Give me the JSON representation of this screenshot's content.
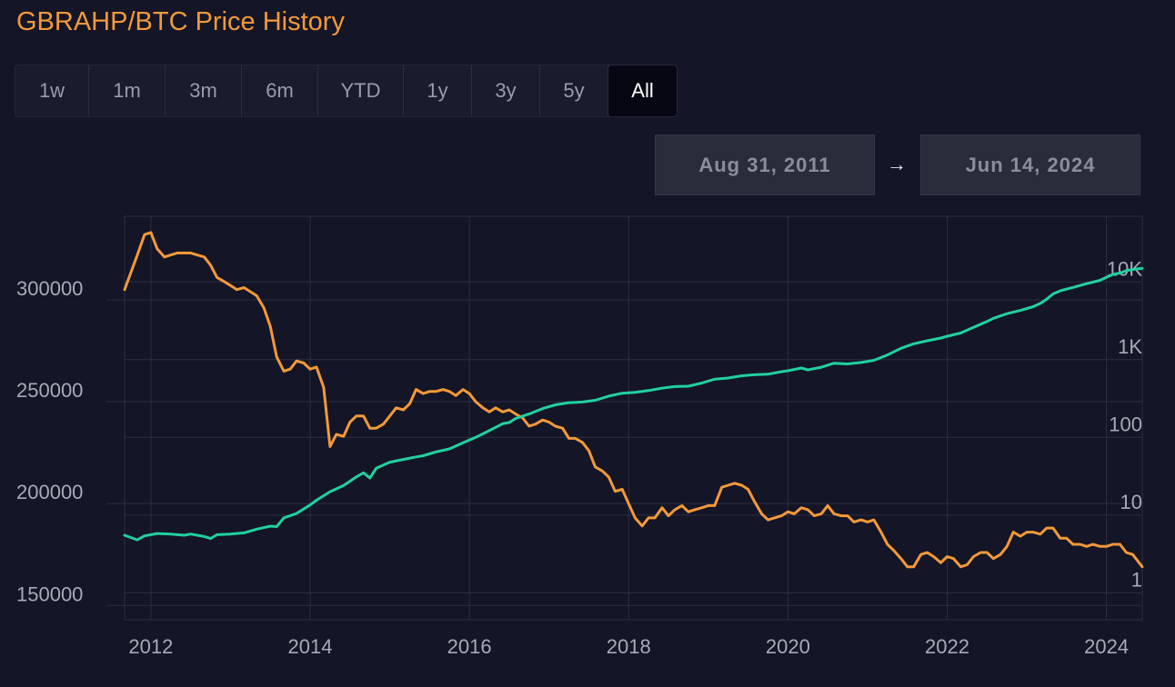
{
  "title": "GBRAHP/BTC Price History",
  "range_tabs": [
    {
      "label": "1w",
      "active": false
    },
    {
      "label": "1m",
      "active": false
    },
    {
      "label": "3m",
      "active": false
    },
    {
      "label": "6m",
      "active": false
    },
    {
      "label": "YTD",
      "active": false
    },
    {
      "label": "1y",
      "active": false
    },
    {
      "label": "3y",
      "active": false
    },
    {
      "label": "5y",
      "active": false
    },
    {
      "label": "All",
      "active": true
    }
  ],
  "date_range": {
    "start": "Aug 31, 2011",
    "arrow": "→",
    "end": "Jun 14, 2024"
  },
  "colors": {
    "background": "#141526",
    "grid": "#2c2e42",
    "gbrahp": "#f2993a",
    "btc": "#21d19f",
    "text": "#a8aab6"
  },
  "chart_data": {
    "type": "line",
    "x_range": [
      2011.67,
      2024.45
    ],
    "x_ticks": [
      {
        "value": 2012,
        "label": "2012"
      },
      {
        "value": 2014,
        "label": "2014"
      },
      {
        "value": 2016,
        "label": "2016"
      },
      {
        "value": 2018,
        "label": "2018"
      },
      {
        "value": 2020,
        "label": "2020"
      },
      {
        "value": 2022,
        "label": "2022"
      },
      {
        "value": 2024,
        "label": "2024"
      }
    ],
    "y_left": {
      "scale": "linear",
      "ylim": [
        143000,
        341000
      ],
      "ticks": [
        {
          "value": 150000,
          "label": "150000"
        },
        {
          "value": 200000,
          "label": "200000"
        },
        {
          "value": 250000,
          "label": "250000"
        },
        {
          "value": 300000,
          "label": "300000"
        }
      ]
    },
    "y_right": {
      "scale": "log",
      "ylim": [
        0.45,
        70000
      ],
      "ticks": [
        {
          "value": 1,
          "label": "1"
        },
        {
          "value": 10,
          "label": "10"
        },
        {
          "value": 100,
          "label": "100"
        },
        {
          "value": 1000,
          "label": "1K"
        },
        {
          "value": 10000,
          "label": "10K"
        }
      ]
    },
    "grid": true,
    "series": [
      {
        "axis": "left",
        "color": "#f2993a",
        "points": [
          [
            2011.67,
            305000
          ],
          [
            2011.83,
            322000
          ],
          [
            2011.92,
            332000
          ],
          [
            2012.0,
            333000
          ],
          [
            2012.08,
            325000
          ],
          [
            2012.17,
            321000
          ],
          [
            2012.25,
            322000
          ],
          [
            2012.33,
            323000
          ],
          [
            2012.5,
            323000
          ],
          [
            2012.67,
            321000
          ],
          [
            2012.75,
            317000
          ],
          [
            2012.83,
            311000
          ],
          [
            2012.92,
            309000
          ],
          [
            2013.0,
            307000
          ],
          [
            2013.08,
            305000
          ],
          [
            2013.17,
            306000
          ],
          [
            2013.25,
            304000
          ],
          [
            2013.33,
            302000
          ],
          [
            2013.42,
            296000
          ],
          [
            2013.5,
            287000
          ],
          [
            2013.58,
            272000
          ],
          [
            2013.67,
            265000
          ],
          [
            2013.75,
            266000
          ],
          [
            2013.83,
            270000
          ],
          [
            2013.92,
            269000
          ],
          [
            2014.0,
            266000
          ],
          [
            2014.08,
            267000
          ],
          [
            2014.17,
            257000
          ],
          [
            2014.25,
            228000
          ],
          [
            2014.33,
            234000
          ],
          [
            2014.42,
            233000
          ],
          [
            2014.5,
            240000
          ],
          [
            2014.58,
            243000
          ],
          [
            2014.67,
            243000
          ],
          [
            2014.75,
            237000
          ],
          [
            2014.83,
            237000
          ],
          [
            2014.92,
            239000
          ],
          [
            2015.0,
            243000
          ],
          [
            2015.08,
            247000
          ],
          [
            2015.17,
            246000
          ],
          [
            2015.25,
            249000
          ],
          [
            2015.33,
            256000
          ],
          [
            2015.42,
            254000
          ],
          [
            2015.5,
            255000
          ],
          [
            2015.58,
            255000
          ],
          [
            2015.67,
            256000
          ],
          [
            2015.75,
            255000
          ],
          [
            2015.83,
            253000
          ],
          [
            2015.92,
            256000
          ],
          [
            2016.0,
            254000
          ],
          [
            2016.08,
            250000
          ],
          [
            2016.17,
            247000
          ],
          [
            2016.25,
            245000
          ],
          [
            2016.33,
            247000
          ],
          [
            2016.42,
            245000
          ],
          [
            2016.5,
            246000
          ],
          [
            2016.58,
            244000
          ],
          [
            2016.67,
            242000
          ],
          [
            2016.75,
            238000
          ],
          [
            2016.83,
            239000
          ],
          [
            2016.92,
            241000
          ],
          [
            2017.0,
            240000
          ],
          [
            2017.08,
            238000
          ],
          [
            2017.17,
            237000
          ],
          [
            2017.25,
            232000
          ],
          [
            2017.33,
            232000
          ],
          [
            2017.42,
            230000
          ],
          [
            2017.5,
            226000
          ],
          [
            2017.58,
            218000
          ],
          [
            2017.67,
            216000
          ],
          [
            2017.75,
            213000
          ],
          [
            2017.83,
            206000
          ],
          [
            2017.92,
            207000
          ],
          [
            2018.0,
            200000
          ],
          [
            2018.08,
            193000
          ],
          [
            2018.17,
            189000
          ],
          [
            2018.25,
            193000
          ],
          [
            2018.33,
            193000
          ],
          [
            2018.42,
            198000
          ],
          [
            2018.5,
            194000
          ],
          [
            2018.58,
            197000
          ],
          [
            2018.67,
            199000
          ],
          [
            2018.75,
            196000
          ],
          [
            2018.83,
            197000
          ],
          [
            2018.92,
            198000
          ],
          [
            2019.0,
            199000
          ],
          [
            2019.08,
            199000
          ],
          [
            2019.17,
            208000
          ],
          [
            2019.25,
            209000
          ],
          [
            2019.33,
            210000
          ],
          [
            2019.42,
            209000
          ],
          [
            2019.5,
            207000
          ],
          [
            2019.58,
            201000
          ],
          [
            2019.67,
            195000
          ],
          [
            2019.75,
            192000
          ],
          [
            2019.83,
            193000
          ],
          [
            2019.92,
            194000
          ],
          [
            2020.0,
            196000
          ],
          [
            2020.08,
            195000
          ],
          [
            2020.17,
            198000
          ],
          [
            2020.25,
            197000
          ],
          [
            2020.33,
            194000
          ],
          [
            2020.42,
            195000
          ],
          [
            2020.5,
            199000
          ],
          [
            2020.58,
            195000
          ],
          [
            2020.67,
            194000
          ],
          [
            2020.75,
            194000
          ],
          [
            2020.83,
            191000
          ],
          [
            2020.92,
            192000
          ],
          [
            2021.0,
            191000
          ],
          [
            2021.08,
            192000
          ],
          [
            2021.17,
            186000
          ],
          [
            2021.25,
            180000
          ],
          [
            2021.33,
            177000
          ],
          [
            2021.42,
            173000
          ],
          [
            2021.5,
            169000
          ],
          [
            2021.58,
            169000
          ],
          [
            2021.67,
            175000
          ],
          [
            2021.75,
            176000
          ],
          [
            2021.83,
            174000
          ],
          [
            2021.92,
            171000
          ],
          [
            2022.0,
            174000
          ],
          [
            2022.08,
            173000
          ],
          [
            2022.17,
            169000
          ],
          [
            2022.25,
            170000
          ],
          [
            2022.33,
            174000
          ],
          [
            2022.42,
            176000
          ],
          [
            2022.5,
            176000
          ],
          [
            2022.58,
            173000
          ],
          [
            2022.67,
            175000
          ],
          [
            2022.75,
            179000
          ],
          [
            2022.83,
            186000
          ],
          [
            2022.92,
            184000
          ],
          [
            2023.0,
            186000
          ],
          [
            2023.08,
            186000
          ],
          [
            2023.17,
            185000
          ],
          [
            2023.25,
            188000
          ],
          [
            2023.33,
            188000
          ],
          [
            2023.42,
            183000
          ],
          [
            2023.5,
            183000
          ],
          [
            2023.58,
            180000
          ],
          [
            2023.67,
            180000
          ],
          [
            2023.75,
            179000
          ],
          [
            2023.83,
            180000
          ],
          [
            2023.92,
            179000
          ],
          [
            2024.0,
            179000
          ],
          [
            2024.08,
            180000
          ],
          [
            2024.17,
            180000
          ],
          [
            2024.25,
            176000
          ],
          [
            2024.33,
            175000
          ],
          [
            2024.45,
            169000
          ]
        ]
      },
      {
        "axis": "right",
        "color": "#21d19f",
        "points": [
          [
            2011.67,
            5.5
          ],
          [
            2011.83,
            4.8
          ],
          [
            2011.92,
            5.4
          ],
          [
            2012.08,
            5.8
          ],
          [
            2012.25,
            5.7
          ],
          [
            2012.42,
            5.5
          ],
          [
            2012.5,
            5.7
          ],
          [
            2012.67,
            5.3
          ],
          [
            2012.75,
            5.0
          ],
          [
            2012.83,
            5.6
          ],
          [
            2013.0,
            5.7
          ],
          [
            2013.17,
            5.9
          ],
          [
            2013.33,
            6.6
          ],
          [
            2013.5,
            7.2
          ],
          [
            2013.58,
            7.1
          ],
          [
            2013.67,
            9.2
          ],
          [
            2013.83,
            10.5
          ],
          [
            2014.0,
            13.5
          ],
          [
            2014.08,
            15.5
          ],
          [
            2014.25,
            20
          ],
          [
            2014.42,
            24
          ],
          [
            2014.58,
            31
          ],
          [
            2014.67,
            35
          ],
          [
            2014.75,
            30
          ],
          [
            2014.83,
            40
          ],
          [
            2015.0,
            48
          ],
          [
            2015.17,
            52
          ],
          [
            2015.33,
            56
          ],
          [
            2015.42,
            58
          ],
          [
            2015.58,
            65
          ],
          [
            2015.75,
            71
          ],
          [
            2015.92,
            85
          ],
          [
            2016.08,
            100
          ],
          [
            2016.25,
            122
          ],
          [
            2016.42,
            150
          ],
          [
            2016.5,
            155
          ],
          [
            2016.58,
            175
          ],
          [
            2016.75,
            200
          ],
          [
            2016.92,
            235
          ],
          [
            2017.08,
            262
          ],
          [
            2017.25,
            280
          ],
          [
            2017.42,
            285
          ],
          [
            2017.58,
            300
          ],
          [
            2017.75,
            340
          ],
          [
            2017.92,
            370
          ],
          [
            2018.08,
            380
          ],
          [
            2018.25,
            400
          ],
          [
            2018.42,
            430
          ],
          [
            2018.58,
            450
          ],
          [
            2018.75,
            455
          ],
          [
            2018.92,
            500
          ],
          [
            2019.08,
            560
          ],
          [
            2019.25,
            580
          ],
          [
            2019.42,
            620
          ],
          [
            2019.58,
            640
          ],
          [
            2019.75,
            650
          ],
          [
            2019.92,
            700
          ],
          [
            2020.0,
            720
          ],
          [
            2020.17,
            780
          ],
          [
            2020.25,
            740
          ],
          [
            2020.42,
            800
          ],
          [
            2020.58,
            900
          ],
          [
            2020.75,
            880
          ],
          [
            2020.92,
            920
          ],
          [
            2021.08,
            980
          ],
          [
            2021.25,
            1150
          ],
          [
            2021.42,
            1400
          ],
          [
            2021.58,
            1600
          ],
          [
            2021.75,
            1750
          ],
          [
            2021.92,
            1900
          ],
          [
            2022.0,
            2000
          ],
          [
            2022.17,
            2200
          ],
          [
            2022.33,
            2600
          ],
          [
            2022.5,
            3100
          ],
          [
            2022.58,
            3400
          ],
          [
            2022.75,
            3900
          ],
          [
            2022.92,
            4300
          ],
          [
            2023.08,
            4800
          ],
          [
            2023.17,
            5300
          ],
          [
            2023.25,
            6000
          ],
          [
            2023.33,
            7000
          ],
          [
            2023.42,
            7700
          ],
          [
            2023.58,
            8500
          ],
          [
            2023.75,
            9500
          ],
          [
            2023.92,
            10500
          ],
          [
            2024.0,
            11500
          ],
          [
            2024.08,
            12500
          ],
          [
            2024.17,
            13000
          ],
          [
            2024.25,
            14000
          ],
          [
            2024.33,
            14500
          ],
          [
            2024.45,
            15000
          ]
        ]
      }
    ]
  }
}
